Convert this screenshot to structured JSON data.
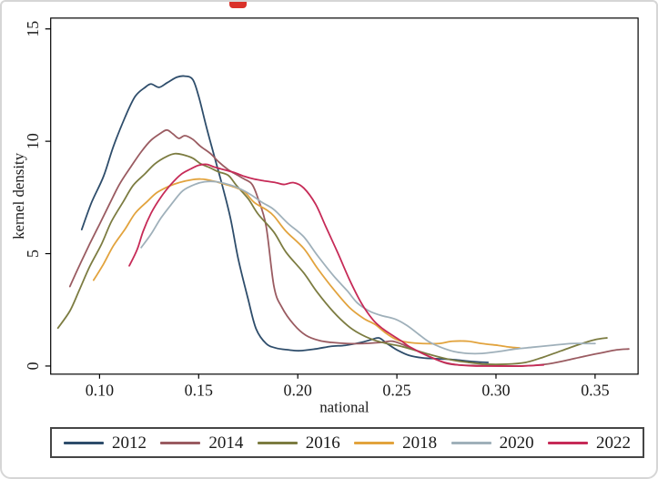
{
  "page": {
    "background": "#ffffff",
    "frame_border_color": "#d6d6d6",
    "top_mark_color": "#da322a",
    "axis_color": "#000000",
    "text_color": "#1a1a1a",
    "legend_border_color": "#454545"
  },
  "chart_data": {
    "type": "line",
    "title": "",
    "xlabel": "national",
    "ylabel": "kernel density",
    "grid": false,
    "legend_position": "bottom",
    "xlim": [
      0.075,
      0.372
    ],
    "ylim": [
      -0.36,
      15.48
    ],
    "x_ticks": [
      0.1,
      0.15,
      0.2,
      0.25,
      0.3,
      0.35
    ],
    "x_tick_labels": [
      "0.10",
      "0.15",
      "0.20",
      "0.25",
      "0.30",
      "0.35"
    ],
    "y_ticks": [
      0,
      5,
      10,
      15
    ],
    "y_tick_labels": [
      "0",
      "5",
      "10",
      "15"
    ],
    "series": [
      {
        "name": "2012",
        "color": "#2e4d6b",
        "points": [
          [
            0.091,
            6.07
          ],
          [
            0.096,
            7.28
          ],
          [
            0.102,
            8.44
          ],
          [
            0.107,
            9.77
          ],
          [
            0.113,
            11.1
          ],
          [
            0.118,
            12.0
          ],
          [
            0.123,
            12.4
          ],
          [
            0.126,
            12.55
          ],
          [
            0.13,
            12.4
          ],
          [
            0.134,
            12.6
          ],
          [
            0.139,
            12.85
          ],
          [
            0.143,
            12.9
          ],
          [
            0.147,
            12.75
          ],
          [
            0.15,
            12.0
          ],
          [
            0.154,
            10.6
          ],
          [
            0.158,
            9.3
          ],
          [
            0.162,
            8.0
          ],
          [
            0.166,
            6.6
          ],
          [
            0.17,
            4.75
          ],
          [
            0.175,
            2.95
          ],
          [
            0.179,
            1.65
          ],
          [
            0.184,
            1.0
          ],
          [
            0.189,
            0.8
          ],
          [
            0.195,
            0.72
          ],
          [
            0.201,
            0.68
          ],
          [
            0.209,
            0.76
          ],
          [
            0.217,
            0.88
          ],
          [
            0.224,
            0.92
          ],
          [
            0.232,
            1.05
          ],
          [
            0.237,
            1.17
          ],
          [
            0.241,
            1.25
          ],
          [
            0.245,
            1.0
          ],
          [
            0.25,
            0.72
          ],
          [
            0.256,
            0.48
          ],
          [
            0.263,
            0.36
          ],
          [
            0.271,
            0.32
          ],
          [
            0.279,
            0.28
          ],
          [
            0.288,
            0.2
          ],
          [
            0.296,
            0.16
          ]
        ]
      },
      {
        "name": "2014",
        "color": "#9a5b61",
        "points": [
          [
            0.085,
            3.54
          ],
          [
            0.09,
            4.5
          ],
          [
            0.095,
            5.43
          ],
          [
            0.1,
            6.31
          ],
          [
            0.105,
            7.2
          ],
          [
            0.11,
            8.08
          ],
          [
            0.116,
            8.89
          ],
          [
            0.121,
            9.53
          ],
          [
            0.126,
            10.05
          ],
          [
            0.131,
            10.37
          ],
          [
            0.134,
            10.5
          ],
          [
            0.137,
            10.33
          ],
          [
            0.14,
            10.13
          ],
          [
            0.143,
            10.25
          ],
          [
            0.147,
            10.09
          ],
          [
            0.151,
            9.77
          ],
          [
            0.156,
            9.45
          ],
          [
            0.16,
            9.09
          ],
          [
            0.165,
            8.73
          ],
          [
            0.169,
            8.52
          ],
          [
            0.173,
            8.32
          ],
          [
            0.177,
            8.08
          ],
          [
            0.18,
            7.44
          ],
          [
            0.184,
            6.23
          ],
          [
            0.188,
            3.54
          ],
          [
            0.192,
            2.61
          ],
          [
            0.198,
            1.85
          ],
          [
            0.204,
            1.37
          ],
          [
            0.211,
            1.13
          ],
          [
            0.217,
            1.05
          ],
          [
            0.225,
            1.0
          ],
          [
            0.233,
            1.0
          ],
          [
            0.242,
            1.05
          ],
          [
            0.248,
            1.1
          ],
          [
            0.255,
            0.88
          ],
          [
            0.262,
            0.6
          ],
          [
            0.269,
            0.32
          ],
          [
            0.275,
            0.12
          ],
          [
            0.281,
            0.05
          ],
          [
            0.291,
            0.02
          ],
          [
            0.302,
            0.0
          ],
          [
            0.313,
            0.0
          ],
          [
            0.325,
            0.08
          ],
          [
            0.335,
            0.24
          ],
          [
            0.345,
            0.44
          ],
          [
            0.354,
            0.6
          ],
          [
            0.361,
            0.72
          ],
          [
            0.367,
            0.76
          ]
        ]
      },
      {
        "name": "2016",
        "color": "#7c7c41",
        "points": [
          [
            0.079,
            1.69
          ],
          [
            0.085,
            2.45
          ],
          [
            0.09,
            3.42
          ],
          [
            0.095,
            4.42
          ],
          [
            0.101,
            5.43
          ],
          [
            0.106,
            6.43
          ],
          [
            0.112,
            7.32
          ],
          [
            0.117,
            8.04
          ],
          [
            0.123,
            8.56
          ],
          [
            0.128,
            9.0
          ],
          [
            0.134,
            9.33
          ],
          [
            0.138,
            9.45
          ],
          [
            0.142,
            9.4
          ],
          [
            0.147,
            9.25
          ],
          [
            0.151,
            9.0
          ],
          [
            0.156,
            8.81
          ],
          [
            0.16,
            8.64
          ],
          [
            0.165,
            8.48
          ],
          [
            0.169,
            8.04
          ],
          [
            0.175,
            7.44
          ],
          [
            0.18,
            6.76
          ],
          [
            0.188,
            5.95
          ],
          [
            0.194,
            5.07
          ],
          [
            0.203,
            4.14
          ],
          [
            0.21,
            3.26
          ],
          [
            0.218,
            2.41
          ],
          [
            0.225,
            1.81
          ],
          [
            0.231,
            1.45
          ],
          [
            0.238,
            1.17
          ],
          [
            0.245,
            1.0
          ],
          [
            0.252,
            0.88
          ],
          [
            0.26,
            0.68
          ],
          [
            0.268,
            0.48
          ],
          [
            0.277,
            0.28
          ],
          [
            0.286,
            0.16
          ],
          [
            0.295,
            0.08
          ],
          [
            0.305,
            0.08
          ],
          [
            0.315,
            0.16
          ],
          [
            0.324,
            0.4
          ],
          [
            0.333,
            0.68
          ],
          [
            0.342,
            0.96
          ],
          [
            0.35,
            1.17
          ],
          [
            0.356,
            1.25
          ]
        ]
      },
      {
        "name": "2018",
        "color": "#e2a33d",
        "points": [
          [
            0.097,
            3.82
          ],
          [
            0.102,
            4.54
          ],
          [
            0.107,
            5.35
          ],
          [
            0.113,
            6.11
          ],
          [
            0.118,
            6.8
          ],
          [
            0.124,
            7.32
          ],
          [
            0.129,
            7.72
          ],
          [
            0.135,
            8.0
          ],
          [
            0.14,
            8.16
          ],
          [
            0.146,
            8.28
          ],
          [
            0.151,
            8.32
          ],
          [
            0.157,
            8.24
          ],
          [
            0.162,
            8.12
          ],
          [
            0.168,
            7.96
          ],
          [
            0.173,
            7.76
          ],
          [
            0.178,
            7.28
          ],
          [
            0.184,
            6.96
          ],
          [
            0.188,
            6.67
          ],
          [
            0.194,
            6.0
          ],
          [
            0.203,
            5.23
          ],
          [
            0.21,
            4.34
          ],
          [
            0.218,
            3.42
          ],
          [
            0.226,
            2.61
          ],
          [
            0.233,
            2.13
          ],
          [
            0.239,
            1.85
          ],
          [
            0.244,
            1.49
          ],
          [
            0.25,
            1.17
          ],
          [
            0.256,
            1.05
          ],
          [
            0.263,
            1.0
          ],
          [
            0.271,
            1.0
          ],
          [
            0.278,
            1.1
          ],
          [
            0.286,
            1.1
          ],
          [
            0.293,
            1.0
          ],
          [
            0.301,
            0.92
          ],
          [
            0.307,
            0.84
          ],
          [
            0.312,
            0.8
          ]
        ]
      },
      {
        "name": "2020",
        "color": "#9fb0ba",
        "points": [
          [
            0.121,
            5.27
          ],
          [
            0.126,
            5.87
          ],
          [
            0.131,
            6.59
          ],
          [
            0.137,
            7.28
          ],
          [
            0.142,
            7.8
          ],
          [
            0.148,
            8.08
          ],
          [
            0.153,
            8.2
          ],
          [
            0.159,
            8.2
          ],
          [
            0.165,
            8.08
          ],
          [
            0.17,
            7.92
          ],
          [
            0.176,
            7.64
          ],
          [
            0.182,
            7.28
          ],
          [
            0.188,
            6.96
          ],
          [
            0.195,
            6.35
          ],
          [
            0.203,
            5.75
          ],
          [
            0.21,
            4.91
          ],
          [
            0.218,
            4.02
          ],
          [
            0.225,
            3.34
          ],
          [
            0.23,
            2.81
          ],
          [
            0.236,
            2.45
          ],
          [
            0.242,
            2.25
          ],
          [
            0.249,
            2.09
          ],
          [
            0.255,
            1.81
          ],
          [
            0.261,
            1.41
          ],
          [
            0.266,
            1.09
          ],
          [
            0.272,
            0.84
          ],
          [
            0.279,
            0.64
          ],
          [
            0.286,
            0.56
          ],
          [
            0.293,
            0.56
          ],
          [
            0.301,
            0.64
          ],
          [
            0.31,
            0.76
          ],
          [
            0.319,
            0.84
          ],
          [
            0.328,
            0.92
          ],
          [
            0.338,
            1.0
          ],
          [
            0.345,
            1.0
          ],
          [
            0.35,
            1.0
          ]
        ]
      },
      {
        "name": "2022",
        "color": "#c62a57",
        "points": [
          [
            0.115,
            4.46
          ],
          [
            0.119,
            5.19
          ],
          [
            0.122,
            6.0
          ],
          [
            0.126,
            6.8
          ],
          [
            0.131,
            7.52
          ],
          [
            0.136,
            8.08
          ],
          [
            0.141,
            8.52
          ],
          [
            0.146,
            8.77
          ],
          [
            0.15,
            8.93
          ],
          [
            0.154,
            8.97
          ],
          [
            0.158,
            8.85
          ],
          [
            0.163,
            8.73
          ],
          [
            0.168,
            8.61
          ],
          [
            0.173,
            8.44
          ],
          [
            0.178,
            8.32
          ],
          [
            0.183,
            8.24
          ],
          [
            0.189,
            8.16
          ],
          [
            0.193,
            8.08
          ],
          [
            0.198,
            8.16
          ],
          [
            0.203,
            7.92
          ],
          [
            0.209,
            7.2
          ],
          [
            0.214,
            6.23
          ],
          [
            0.22,
            5.07
          ],
          [
            0.226,
            3.86
          ],
          [
            0.232,
            2.81
          ],
          [
            0.238,
            2.05
          ],
          [
            0.243,
            1.65
          ],
          [
            0.247,
            1.41
          ],
          [
            0.252,
            1.13
          ],
          [
            0.256,
            0.88
          ],
          [
            0.262,
            0.6
          ],
          [
            0.268,
            0.36
          ],
          [
            0.274,
            0.16
          ],
          [
            0.281,
            0.05
          ],
          [
            0.29,
            0.0
          ],
          [
            0.302,
            0.0
          ],
          [
            0.313,
            0.0
          ],
          [
            0.324,
            0.05
          ]
        ]
      }
    ]
  }
}
